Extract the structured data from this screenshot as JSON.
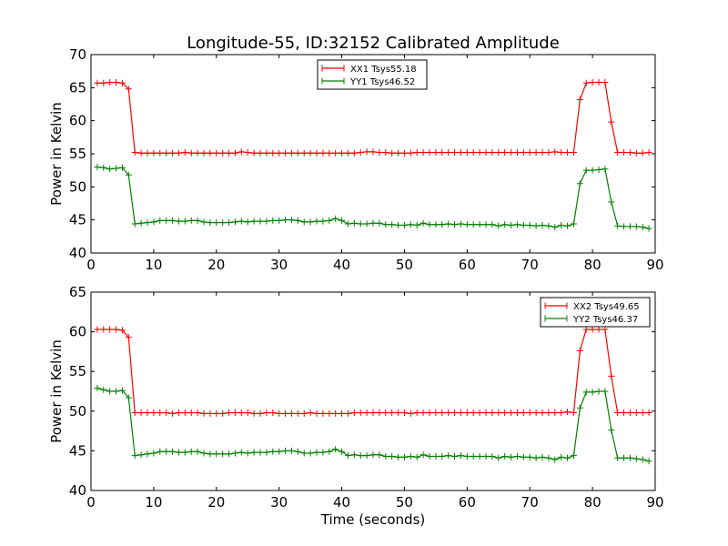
{
  "figure": {
    "title": "Longitude-55, ID:32152 Calibrated Amplitude"
  },
  "chart_data": [
    {
      "type": "line",
      "title": "Longitude-55, ID:32152 Calibrated Amplitude",
      "xlabel": "",
      "ylabel": "Power in Kelvin",
      "xlim": [
        0,
        90
      ],
      "ylim": [
        40,
        70
      ],
      "xticks": [
        0,
        10,
        20,
        30,
        40,
        50,
        60,
        70,
        80,
        90
      ],
      "yticks": [
        40,
        45,
        50,
        55,
        60,
        65,
        70
      ],
      "grid": false,
      "legend_position": "top-center",
      "series": [
        {
          "name": "XX1 Tsys55.18",
          "color": "#ff0000",
          "marker": "plus",
          "x": [
            1,
            2,
            3,
            4,
            5,
            6,
            7,
            8,
            9,
            10,
            11,
            12,
            13,
            14,
            15,
            16,
            17,
            18,
            19,
            20,
            21,
            22,
            23,
            24,
            25,
            26,
            27,
            28,
            29,
            30,
            31,
            32,
            33,
            34,
            35,
            36,
            37,
            38,
            39,
            40,
            41,
            42,
            43,
            44,
            45,
            46,
            47,
            48,
            49,
            50,
            51,
            52,
            53,
            54,
            55,
            56,
            57,
            58,
            59,
            60,
            61,
            62,
            63,
            64,
            65,
            66,
            67,
            68,
            69,
            70,
            71,
            72,
            73,
            74,
            75,
            76,
            77,
            78,
            79,
            80,
            81,
            82,
            83,
            84,
            85,
            86,
            87,
            88,
            89
          ],
          "y": [
            65.7,
            65.7,
            65.8,
            65.8,
            65.7,
            64.8,
            55.2,
            55.1,
            55.1,
            55.1,
            55.1,
            55.1,
            55.1,
            55.1,
            55.2,
            55.1,
            55.1,
            55.1,
            55.1,
            55.1,
            55.1,
            55.1,
            55.1,
            55.3,
            55.2,
            55.1,
            55.1,
            55.1,
            55.1,
            55.1,
            55.1,
            55.1,
            55.1,
            55.1,
            55.1,
            55.1,
            55.1,
            55.1,
            55.1,
            55.1,
            55.1,
            55.1,
            55.2,
            55.3,
            55.3,
            55.2,
            55.2,
            55.1,
            55.1,
            55.1,
            55.1,
            55.2,
            55.2,
            55.2,
            55.2,
            55.2,
            55.2,
            55.2,
            55.2,
            55.2,
            55.2,
            55.2,
            55.2,
            55.2,
            55.2,
            55.2,
            55.2,
            55.2,
            55.2,
            55.2,
            55.2,
            55.2,
            55.2,
            55.3,
            55.2,
            55.2,
            55.2,
            63.2,
            65.7,
            65.8,
            65.8,
            65.8,
            59.8,
            55.2,
            55.2,
            55.2,
            55.1,
            55.1,
            55.2
          ]
        },
        {
          "name": "YY1 Tsys46.52",
          "color": "#008000",
          "marker": "plus",
          "x": [
            1,
            2,
            3,
            4,
            5,
            6,
            7,
            8,
            9,
            10,
            11,
            12,
            13,
            14,
            15,
            16,
            17,
            18,
            19,
            20,
            21,
            22,
            23,
            24,
            25,
            26,
            27,
            28,
            29,
            30,
            31,
            32,
            33,
            34,
            35,
            36,
            37,
            38,
            39,
            40,
            41,
            42,
            43,
            44,
            45,
            46,
            47,
            48,
            49,
            50,
            51,
            52,
            53,
            54,
            55,
            56,
            57,
            58,
            59,
            60,
            61,
            62,
            63,
            64,
            65,
            66,
            67,
            68,
            69,
            70,
            71,
            72,
            73,
            74,
            75,
            76,
            77,
            78,
            79,
            80,
            81,
            82,
            83,
            84,
            85,
            86,
            87,
            88,
            89
          ],
          "y": [
            53.0,
            52.9,
            52.7,
            52.8,
            52.9,
            51.8,
            44.4,
            44.5,
            44.6,
            44.7,
            44.9,
            44.9,
            44.9,
            44.8,
            44.8,
            44.9,
            44.9,
            44.7,
            44.6,
            44.6,
            44.6,
            44.6,
            44.7,
            44.8,
            44.7,
            44.8,
            44.8,
            44.8,
            44.9,
            44.9,
            45.0,
            45.0,
            44.9,
            44.7,
            44.7,
            44.8,
            44.8,
            44.9,
            45.2,
            44.9,
            44.4,
            44.5,
            44.4,
            44.4,
            44.5,
            44.5,
            44.3,
            44.3,
            44.2,
            44.2,
            44.3,
            44.2,
            44.5,
            44.3,
            44.3,
            44.3,
            44.4,
            44.3,
            44.4,
            44.3,
            44.3,
            44.3,
            44.3,
            44.3,
            44.1,
            44.3,
            44.2,
            44.3,
            44.2,
            44.2,
            44.1,
            44.2,
            44.1,
            43.9,
            44.2,
            44.1,
            44.4,
            50.5,
            52.5,
            52.5,
            52.6,
            52.7,
            47.7,
            44.1,
            44.0,
            44.0,
            44.0,
            43.9,
            43.7
          ]
        }
      ]
    },
    {
      "type": "line",
      "title": "",
      "xlabel": "Time (seconds)",
      "ylabel": "Power in Kelvin",
      "xlim": [
        0,
        90
      ],
      "ylim": [
        40,
        65
      ],
      "xticks": [
        0,
        10,
        20,
        30,
        40,
        50,
        60,
        70,
        80,
        90
      ],
      "yticks": [
        40,
        45,
        50,
        55,
        60,
        65
      ],
      "grid": false,
      "legend_position": "top-right",
      "series": [
        {
          "name": "XX2 Tsys49.65",
          "color": "#ff0000",
          "marker": "plus",
          "x": [
            1,
            2,
            3,
            4,
            5,
            6,
            7,
            8,
            9,
            10,
            11,
            12,
            13,
            14,
            15,
            16,
            17,
            18,
            19,
            20,
            21,
            22,
            23,
            24,
            25,
            26,
            27,
            28,
            29,
            30,
            31,
            32,
            33,
            34,
            35,
            36,
            37,
            38,
            39,
            40,
            41,
            42,
            43,
            44,
            45,
            46,
            47,
            48,
            49,
            50,
            51,
            52,
            53,
            54,
            55,
            56,
            57,
            58,
            59,
            60,
            61,
            62,
            63,
            64,
            65,
            66,
            67,
            68,
            69,
            70,
            71,
            72,
            73,
            74,
            75,
            76,
            77,
            78,
            79,
            80,
            81,
            82,
            83,
            84,
            85,
            86,
            87,
            88,
            89
          ],
          "y": [
            60.3,
            60.3,
            60.3,
            60.3,
            60.2,
            59.3,
            49.8,
            49.8,
            49.8,
            49.8,
            49.8,
            49.8,
            49.7,
            49.8,
            49.8,
            49.8,
            49.8,
            49.7,
            49.7,
            49.7,
            49.7,
            49.8,
            49.8,
            49.8,
            49.8,
            49.7,
            49.7,
            49.8,
            49.8,
            49.7,
            49.7,
            49.7,
            49.7,
            49.7,
            49.8,
            49.7,
            49.7,
            49.7,
            49.7,
            49.7,
            49.7,
            49.8,
            49.8,
            49.8,
            49.8,
            49.8,
            49.8,
            49.8,
            49.8,
            49.8,
            49.7,
            49.8,
            49.8,
            49.8,
            49.8,
            49.8,
            49.8,
            49.8,
            49.8,
            49.8,
            49.8,
            49.8,
            49.8,
            49.8,
            49.8,
            49.8,
            49.8,
            49.8,
            49.8,
            49.8,
            49.8,
            49.8,
            49.8,
            49.8,
            49.8,
            49.9,
            49.8,
            57.6,
            60.3,
            60.3,
            60.3,
            60.3,
            54.4,
            49.8,
            49.8,
            49.8,
            49.8,
            49.8,
            49.8
          ]
        },
        {
          "name": "YY2 Tsys46.37",
          "color": "#008000",
          "marker": "plus",
          "x": [
            1,
            2,
            3,
            4,
            5,
            6,
            7,
            8,
            9,
            10,
            11,
            12,
            13,
            14,
            15,
            16,
            17,
            18,
            19,
            20,
            21,
            22,
            23,
            24,
            25,
            26,
            27,
            28,
            29,
            30,
            31,
            32,
            33,
            34,
            35,
            36,
            37,
            38,
            39,
            40,
            41,
            42,
            43,
            44,
            45,
            46,
            47,
            48,
            49,
            50,
            51,
            52,
            53,
            54,
            55,
            56,
            57,
            58,
            59,
            60,
            61,
            62,
            63,
            64,
            65,
            66,
            67,
            68,
            69,
            70,
            71,
            72,
            73,
            74,
            75,
            76,
            77,
            78,
            79,
            80,
            81,
            82,
            83,
            84,
            85,
            86,
            87,
            88,
            89
          ],
          "y": [
            52.9,
            52.7,
            52.5,
            52.5,
            52.6,
            51.7,
            44.4,
            44.5,
            44.6,
            44.7,
            44.9,
            44.9,
            44.9,
            44.8,
            44.8,
            44.9,
            44.9,
            44.7,
            44.6,
            44.6,
            44.6,
            44.6,
            44.7,
            44.8,
            44.7,
            44.8,
            44.8,
            44.8,
            44.9,
            44.9,
            45.0,
            45.0,
            44.9,
            44.7,
            44.7,
            44.8,
            44.8,
            44.9,
            45.2,
            44.9,
            44.4,
            44.5,
            44.4,
            44.4,
            44.5,
            44.5,
            44.3,
            44.3,
            44.2,
            44.2,
            44.3,
            44.2,
            44.5,
            44.3,
            44.3,
            44.3,
            44.4,
            44.3,
            44.4,
            44.3,
            44.3,
            44.3,
            44.3,
            44.3,
            44.1,
            44.3,
            44.2,
            44.3,
            44.2,
            44.2,
            44.1,
            44.2,
            44.1,
            43.9,
            44.2,
            44.1,
            44.4,
            50.4,
            52.4,
            52.4,
            52.5,
            52.5,
            47.6,
            44.1,
            44.1,
            44.1,
            44.0,
            43.9,
            43.7
          ]
        }
      ]
    }
  ]
}
